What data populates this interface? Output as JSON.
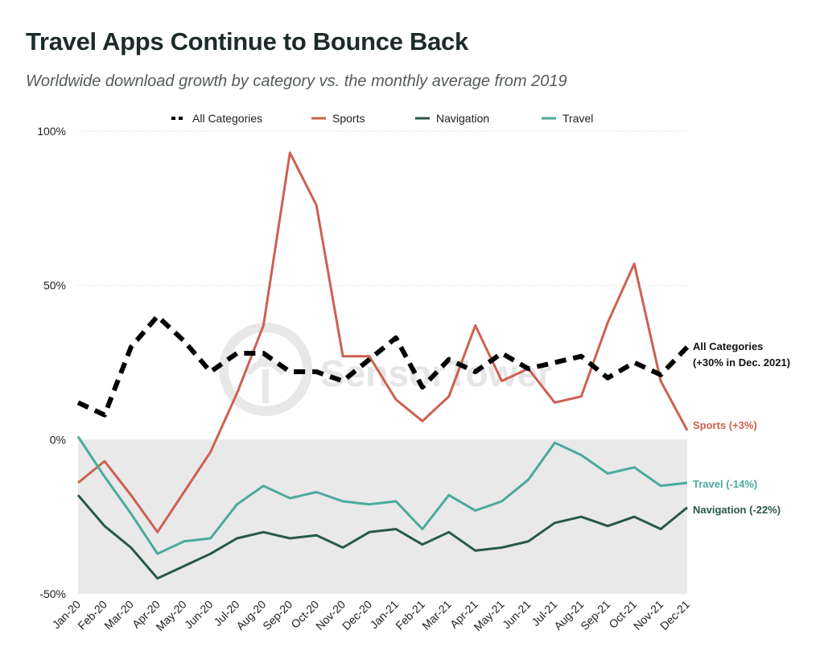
{
  "title": "Travel Apps Continue to Bounce Back",
  "subtitle": "Worldwide download growth by category vs. the monthly average from 2019",
  "watermark": "SensorTower",
  "colors": {
    "all": "#000000",
    "sports": "#cc6150",
    "navigation": "#27584b",
    "travel": "#4aaa9c",
    "negative_band": "#e9e9e9"
  },
  "chart_data": {
    "type": "line",
    "x": [
      "Jan-20",
      "Feb-20",
      "Mar-20",
      "Apr-20",
      "May-20",
      "Jun-20",
      "Jul-20",
      "Aug-20",
      "Sep-20",
      "Oct-20",
      "Nov-20",
      "Dec-20",
      "Jan-21",
      "Feb-21",
      "Mar-21",
      "Apr-21",
      "May-21",
      "Jun-21",
      "Jul-21",
      "Aug-21",
      "Sep-21",
      "Oct-21",
      "Nov-21",
      "Dec-21"
    ],
    "ylim": [
      -50,
      100
    ],
    "yticks": [
      {
        "value": 100,
        "label": "100%"
      },
      {
        "value": 50,
        "label": "50%"
      },
      {
        "value": 0,
        "label": "0%"
      },
      {
        "value": -50,
        "label": "-50%"
      }
    ],
    "grid": true,
    "legend_position": "top",
    "series": [
      {
        "name": "All Categories",
        "key": "all",
        "dash": true,
        "values": [
          12,
          8,
          30,
          40,
          32,
          22,
          28,
          28,
          22,
          22,
          19,
          26,
          33,
          17,
          26,
          22,
          28,
          23,
          25,
          27,
          20,
          25,
          21,
          30
        ],
        "end_label": [
          "All Categories",
          "(+30% in Dec. 2021)"
        ]
      },
      {
        "name": "Sports",
        "key": "sports",
        "values": [
          -14,
          -7,
          -18,
          -30,
          -17,
          -4,
          15,
          37,
          93,
          76,
          27,
          27,
          13,
          6,
          14,
          37,
          19,
          23,
          12,
          14,
          38,
          57,
          19,
          3
        ],
        "end_label": [
          "Sports (+3%)"
        ]
      },
      {
        "name": "Navigation",
        "key": "navigation",
        "values": [
          -18,
          -28,
          -35,
          -45,
          -41,
          -37,
          -32,
          -30,
          -32,
          -31,
          -35,
          -30,
          -29,
          -34,
          -30,
          -36,
          -35,
          -33,
          -27,
          -25,
          -28,
          -25,
          -29,
          -22
        ],
        "end_label": [
          "Navigation (-22%)"
        ]
      },
      {
        "name": "Travel",
        "key": "travel",
        "values": [
          1,
          -12,
          -24,
          -37,
          -33,
          -32,
          -21,
          -15,
          -19,
          -17,
          -20,
          -21,
          -20,
          -29,
          -18,
          -23,
          -20,
          -13,
          -1,
          -5,
          -11,
          -9,
          -15,
          -14
        ],
        "end_label": [
          "Travel (-14%)"
        ]
      }
    ]
  }
}
